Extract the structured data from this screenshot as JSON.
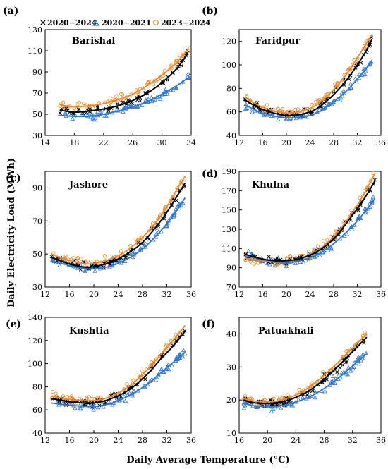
{
  "figure": {
    "ylabel": "Daily Electricity Load (MWh)",
    "xlabel": "Daily Average Temperature (°C)",
    "legend": [
      {
        "name": "2020−2024",
        "marker": "x",
        "color": "#000000"
      },
      {
        "name": "2020−2021",
        "marker": "triangle",
        "color": "#2e75c8"
      },
      {
        "name": "2023−2024",
        "marker": "circle",
        "color": "#e58a2e"
      }
    ],
    "colors": {
      "all": "#000000",
      "early": "#2e75c8",
      "late": "#e58a2e"
    }
  },
  "chart_data": [
    {
      "type": "scatter",
      "panel_label": "(a)",
      "city": "Barishal",
      "xlim": [
        14,
        34
      ],
      "ylim": [
        30,
        130
      ],
      "xticks": [
        14,
        18,
        22,
        26,
        30,
        34
      ],
      "yticks": [
        30,
        50,
        70,
        90,
        110,
        130
      ],
      "data_x": [
        16,
        34
      ],
      "series": [
        {
          "name": "2020−2024",
          "fit": [
            [
              16,
              54
            ],
            [
              18,
              52
            ],
            [
              20,
              53
            ],
            [
              22,
              55
            ],
            [
              24,
              58
            ],
            [
              26,
              63
            ],
            [
              28,
              70
            ],
            [
              30,
              80
            ],
            [
              32,
              93
            ],
            [
              33.5,
              107
            ]
          ]
        },
        {
          "name": "2020−2021",
          "fit": [
            [
              16,
              49
            ],
            [
              18,
              48
            ],
            [
              20,
              48
            ],
            [
              22,
              50
            ],
            [
              24,
              53
            ],
            [
              26,
              57
            ],
            [
              28,
              62
            ],
            [
              30,
              69
            ],
            [
              32,
              77
            ],
            [
              33.5,
              84
            ]
          ]
        },
        {
          "name": "2023−2024",
          "fit": [
            [
              16,
              59
            ],
            [
              18,
              57
            ],
            [
              20,
              58
            ],
            [
              22,
              60
            ],
            [
              24,
              64
            ],
            [
              26,
              69
            ],
            [
              28,
              77
            ],
            [
              30,
              87
            ],
            [
              32,
              99
            ],
            [
              33.5,
              111
            ]
          ]
        }
      ]
    },
    {
      "type": "scatter",
      "panel_label": "(b)",
      "city": "Faridpur",
      "xlim": [
        12,
        36
      ],
      "ylim": [
        40,
        130
      ],
      "xticks": [
        12,
        16,
        20,
        24,
        28,
        32,
        36
      ],
      "yticks": [
        40,
        60,
        80,
        100,
        120
      ],
      "data_x": [
        13,
        34.5
      ],
      "series": [
        {
          "name": "2020−2024",
          "fit": [
            [
              13,
              70
            ],
            [
              16,
              62
            ],
            [
              20,
              57
            ],
            [
              24,
              60
            ],
            [
              27,
              70
            ],
            [
              30,
              86
            ],
            [
              32,
              100
            ],
            [
              33.5,
              112
            ],
            [
              34.5,
              122
            ]
          ]
        },
        {
          "name": "2020−2021",
          "fit": [
            [
              13,
              66
            ],
            [
              16,
              59
            ],
            [
              20,
              55
            ],
            [
              24,
              57
            ],
            [
              27,
              65
            ],
            [
              30,
              77
            ],
            [
              32,
              88
            ],
            [
              33.5,
              97
            ],
            [
              34.5,
              103
            ]
          ]
        },
        {
          "name": "2023−2024",
          "fit": [
            [
              13,
              72
            ],
            [
              16,
              64
            ],
            [
              20,
              59
            ],
            [
              24,
              63
            ],
            [
              27,
              74
            ],
            [
              30,
              91
            ],
            [
              32,
              106
            ],
            [
              33.5,
              118
            ],
            [
              34.5,
              126
            ]
          ]
        }
      ]
    },
    {
      "type": "scatter",
      "panel_label": "(c)",
      "city": "Jashore",
      "xlim": [
        12,
        36
      ],
      "ylim": [
        30,
        100
      ],
      "xticks": [
        12,
        16,
        20,
        24,
        28,
        32,
        36
      ],
      "yticks": [
        30,
        50,
        70,
        90
      ],
      "data_x": [
        13,
        35
      ],
      "series": [
        {
          "name": "2020−2024",
          "fit": [
            [
              13,
              48
            ],
            [
              16,
              44
            ],
            [
              19,
              42
            ],
            [
              22,
              44
            ],
            [
              25,
              49
            ],
            [
              28,
              57
            ],
            [
              31,
              70
            ],
            [
              33,
              81
            ],
            [
              35,
              93
            ]
          ]
        },
        {
          "name": "2020−2021",
          "fit": [
            [
              13,
              46
            ],
            [
              16,
              43
            ],
            [
              19,
              41
            ],
            [
              22,
              42
            ],
            [
              25,
              46
            ],
            [
              28,
              53
            ],
            [
              31,
              64
            ],
            [
              33,
              73
            ],
            [
              35,
              84
            ]
          ]
        },
        {
          "name": "2023−2024",
          "fit": [
            [
              13,
              50
            ],
            [
              16,
              46
            ],
            [
              19,
              44
            ],
            [
              22,
              46
            ],
            [
              25,
              51
            ],
            [
              28,
              60
            ],
            [
              31,
              73
            ],
            [
              33,
              85
            ],
            [
              35,
              97
            ]
          ]
        }
      ]
    },
    {
      "type": "scatter",
      "panel_label": "(d)",
      "city": "Khulna",
      "xlim": [
        12,
        36
      ],
      "ylim": [
        70,
        190
      ],
      "xticks": [
        12,
        16,
        20,
        24,
        28,
        32,
        36
      ],
      "yticks": [
        70,
        90,
        110,
        130,
        150,
        170,
        190
      ],
      "data_x": [
        13,
        35
      ],
      "series": [
        {
          "name": "2020−2024",
          "fit": [
            [
              13,
              104
            ],
            [
              16,
              99
            ],
            [
              19,
              97
            ],
            [
              22,
              99
            ],
            [
              25,
              106
            ],
            [
              28,
              120
            ],
            [
              31,
              143
            ],
            [
              33,
              160
            ],
            [
              35,
              180
            ]
          ]
        },
        {
          "name": "2020−2021",
          "fit": [
            [
              13,
              103
            ],
            [
              16,
              98
            ],
            [
              19,
              95
            ],
            [
              22,
              97
            ],
            [
              25,
              103
            ],
            [
              28,
              115
            ],
            [
              31,
              132
            ],
            [
              33,
              146
            ],
            [
              35,
              162
            ]
          ]
        },
        {
          "name": "2023−2024",
          "fit": [
            [
              13,
              100
            ],
            [
              16,
              97
            ],
            [
              19,
              96
            ],
            [
              22,
              99
            ],
            [
              25,
              107
            ],
            [
              28,
              122
            ],
            [
              31,
              146
            ],
            [
              33,
              165
            ],
            [
              35,
              188
            ]
          ]
        }
      ]
    },
    {
      "type": "scatter",
      "panel_label": "(e)",
      "city": "Kushtia",
      "xlim": [
        12,
        36
      ],
      "ylim": [
        40,
        140
      ],
      "xticks": [
        12,
        16,
        20,
        24,
        28,
        32,
        36
      ],
      "yticks": [
        40,
        60,
        80,
        100,
        120,
        140
      ],
      "data_x": [
        13,
        35
      ],
      "series": [
        {
          "name": "2020−2024",
          "fit": [
            [
              13,
              70
            ],
            [
              16,
              67
            ],
            [
              20,
              66
            ],
            [
              23,
              70
            ],
            [
              26,
              78
            ],
            [
              29,
              92
            ],
            [
              31,
              104
            ],
            [
              33,
              115
            ],
            [
              35,
              128
            ]
          ]
        },
        {
          "name": "2020−2021",
          "fit": [
            [
              13,
              66
            ],
            [
              16,
              64
            ],
            [
              20,
              63
            ],
            [
              23,
              66
            ],
            [
              26,
              73
            ],
            [
              29,
              83
            ],
            [
              31,
              92
            ],
            [
              33,
              101
            ],
            [
              35,
              110
            ]
          ]
        },
        {
          "name": "2023−2024",
          "fit": [
            [
              13,
              72
            ],
            [
              16,
              69
            ],
            [
              20,
              68
            ],
            [
              23,
              72
            ],
            [
              26,
              81
            ],
            [
              29,
              96
            ],
            [
              31,
              108
            ],
            [
              33,
              120
            ],
            [
              35,
              133
            ]
          ]
        }
      ]
    },
    {
      "type": "scatter",
      "panel_label": "(f)",
      "city": "Patuakhali",
      "xlim": [
        16,
        36
      ],
      "ylim": [
        10,
        45
      ],
      "xticks": [
        16,
        20,
        24,
        28,
        32,
        36
      ],
      "yticks": [
        10,
        20,
        30,
        40
      ],
      "data_x": [
        16.5,
        34
      ],
      "series": [
        {
          "name": "2020−2024",
          "fit": [
            [
              16.5,
              20
            ],
            [
              18,
              19.2
            ],
            [
              20,
              18.9
            ],
            [
              22,
              19.4
            ],
            [
              24,
              20.8
            ],
            [
              26,
              23
            ],
            [
              28,
              26.3
            ],
            [
              30,
              30.3
            ],
            [
              32,
              34.6
            ],
            [
              34,
              39
            ]
          ]
        },
        {
          "name": "2020−2021",
          "fit": [
            [
              16.5,
              19
            ],
            [
              18,
              18.3
            ],
            [
              20,
              18
            ],
            [
              22,
              18.3
            ],
            [
              24,
              19.4
            ],
            [
              26,
              21
            ],
            [
              28,
              23.5
            ],
            [
              30,
              26.6
            ],
            [
              32,
              30.3
            ],
            [
              34,
              34
            ]
          ]
        },
        {
          "name": "2023−2024",
          "fit": [
            [
              16.5,
              20.5
            ],
            [
              18,
              19.7
            ],
            [
              20,
              19.4
            ],
            [
              22,
              20
            ],
            [
              24,
              21.5
            ],
            [
              26,
              24
            ],
            [
              28,
              27.5
            ],
            [
              30,
              31.5
            ],
            [
              32,
              35.8
            ],
            [
              34,
              40
            ]
          ]
        }
      ]
    }
  ]
}
